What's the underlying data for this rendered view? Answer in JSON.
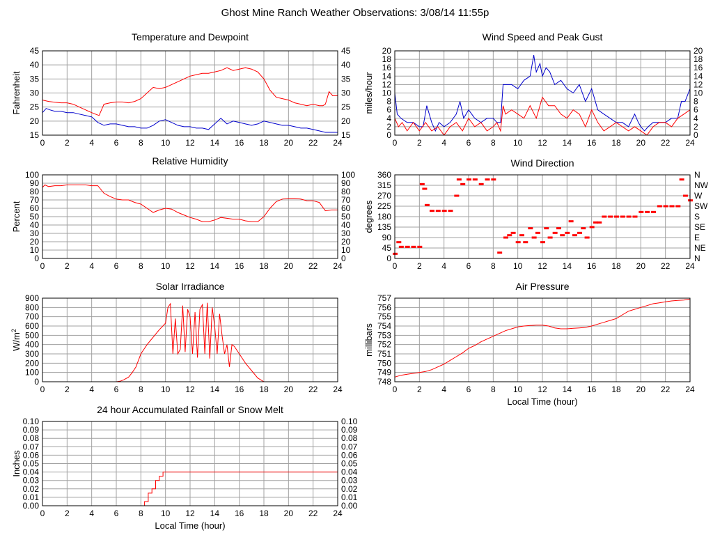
{
  "page": {
    "title": "Ghost Mine Ranch Weather Observations: 3/08/14 11:55p"
  },
  "colors": {
    "red": "#ff0000",
    "blue": "#0000cc",
    "grid": "#a0a0a0",
    "frame": "#000000"
  },
  "chart_data": [
    {
      "id": "temperature",
      "type": "line",
      "title": "Temperature and Dewpoint",
      "ylabel": "Fahrenheit",
      "xlabel": "",
      "xlim": [
        0,
        24
      ],
      "ylim": [
        15,
        45
      ],
      "yticks": [
        15,
        20,
        25,
        30,
        35,
        40,
        45
      ],
      "right_axis": true,
      "series": [
        {
          "color": "red",
          "x": [
            0,
            0.5,
            1,
            1.5,
            2,
            2.5,
            3,
            3.5,
            4,
            4.3,
            4.6,
            5,
            5.5,
            6,
            6.5,
            7,
            7.5,
            8,
            8.5,
            9,
            9.5,
            10,
            10.5,
            11,
            11.5,
            12,
            12.5,
            13,
            13.5,
            14,
            14.5,
            15,
            15.5,
            16,
            16.5,
            17,
            17.5,
            18,
            18.5,
            19,
            19.5,
            20,
            20.5,
            21,
            21.5,
            22,
            22.5,
            22.8,
            23,
            23.3,
            23.6,
            24
          ],
          "y": [
            27.5,
            27,
            26.7,
            26.5,
            26.5,
            26,
            25,
            24,
            23,
            22.5,
            22,
            26,
            26.5,
            26.8,
            26.8,
            26.5,
            27,
            28,
            30,
            32,
            31.5,
            32,
            33,
            34,
            35,
            36,
            36.5,
            37,
            37,
            37.5,
            38,
            39,
            38,
            38.5,
            39,
            38.5,
            37.5,
            35,
            31,
            28.5,
            28,
            27.5,
            26.5,
            26,
            25.5,
            26,
            25.5,
            25.5,
            26,
            30.5,
            29,
            29
          ]
        },
        {
          "color": "blue",
          "x": [
            0,
            0.3,
            0.6,
            1,
            1.5,
            2,
            2.5,
            3,
            3.5,
            4,
            4.5,
            5,
            5.5,
            6,
            6.5,
            7,
            7.5,
            8,
            8.5,
            9,
            9.5,
            10,
            10.5,
            11,
            11.5,
            12,
            12.5,
            13,
            13.5,
            14,
            14.5,
            15,
            15.5,
            16,
            16.5,
            17,
            17.5,
            18,
            18.5,
            19,
            19.5,
            20,
            20.5,
            21,
            21.5,
            22,
            22.5,
            23,
            23.5,
            24
          ],
          "y": [
            23,
            24.5,
            24,
            23.5,
            23.5,
            23,
            23,
            22.5,
            22,
            21.5,
            19.5,
            18.5,
            19,
            19,
            18.5,
            18,
            18,
            17.5,
            17.5,
            18.5,
            20,
            20.5,
            19.5,
            18.5,
            18,
            18,
            17.5,
            17.5,
            17,
            19,
            21,
            19,
            20,
            19.5,
            19,
            18.5,
            19,
            20,
            19.5,
            19,
            18.5,
            18.5,
            18,
            17.5,
            17.5,
            17,
            16.5,
            16,
            16,
            16
          ]
        }
      ]
    },
    {
      "id": "wind_speed",
      "type": "line",
      "title": "Wind Speed and Peak Gust",
      "ylabel": "miles/hour",
      "xlabel": "",
      "xlim": [
        0,
        24
      ],
      "ylim": [
        0,
        20
      ],
      "yticks": [
        0,
        2,
        4,
        6,
        8,
        10,
        12,
        14,
        16,
        18,
        20
      ],
      "right_axis": true,
      "series": [
        {
          "color": "blue",
          "x": [
            0,
            0.2,
            0.5,
            1,
            1.5,
            2,
            2.3,
            2.6,
            3,
            3.3,
            3.6,
            4,
            4.5,
            5,
            5.3,
            5.6,
            6,
            6.5,
            7,
            7.5,
            8,
            8.3,
            8.6,
            8.8,
            9,
            9.5,
            10,
            10.5,
            11,
            11.3,
            11.5,
            11.8,
            12,
            12.3,
            12.6,
            13,
            13.5,
            14,
            14.5,
            15,
            15.5,
            16,
            16.5,
            17,
            17.5,
            18,
            18.5,
            19,
            19.5,
            19.8,
            20,
            20.3,
            20.6,
            21,
            21.5,
            22,
            22.5,
            23,
            23.3,
            23.6,
            24
          ],
          "y": [
            10,
            5,
            4,
            3,
            3,
            2,
            2,
            7,
            3,
            1,
            3,
            2,
            3,
            5,
            8,
            4,
            6,
            4,
            3,
            4,
            4,
            3,
            3,
            12,
            12,
            12,
            11,
            13,
            14,
            19,
            15,
            17,
            14,
            16,
            15,
            12,
            13,
            11,
            10,
            12,
            8,
            11,
            6,
            5,
            4,
            3,
            3,
            2,
            5,
            3,
            2,
            1,
            2,
            3,
            3,
            3,
            4,
            4,
            8,
            8,
            11
          ]
        },
        {
          "color": "red",
          "x": [
            0,
            0.3,
            0.6,
            1,
            1.5,
            2,
            2.5,
            3,
            3.5,
            4,
            4.5,
            5,
            5.5,
            6,
            6.5,
            7,
            7.5,
            8,
            8.3,
            8.6,
            8.8,
            9,
            9.5,
            10,
            10.5,
            11,
            11.5,
            12,
            12.5,
            13,
            13.5,
            14,
            14.5,
            15,
            15.5,
            16,
            16.5,
            17,
            17.5,
            18,
            18.5,
            19,
            19.5,
            20,
            20.5,
            21,
            21.5,
            22,
            22.5,
            23,
            23.5,
            24
          ],
          "y": [
            4,
            2,
            3,
            1,
            3,
            1,
            3,
            1,
            2,
            0,
            2,
            3,
            1,
            4,
            2,
            3,
            1,
            2,
            3,
            1,
            7,
            5,
            6,
            5,
            4,
            7,
            4,
            9,
            7,
            7,
            5,
            4,
            6,
            5,
            2,
            6,
            3,
            1,
            2,
            3,
            2,
            1,
            2,
            1,
            0,
            2,
            3,
            3,
            2,
            4,
            5,
            6
          ]
        }
      ]
    },
    {
      "id": "humidity",
      "type": "line",
      "title": "Relative Humidity",
      "ylabel": "Percent",
      "xlabel": "",
      "xlim": [
        0,
        24
      ],
      "ylim": [
        0,
        100
      ],
      "yticks": [
        0,
        10,
        20,
        30,
        40,
        50,
        60,
        70,
        80,
        90,
        100
      ],
      "right_axis": true,
      "series": [
        {
          "color": "red",
          "x": [
            0,
            0.2,
            0.5,
            1,
            1.5,
            2,
            2.5,
            3,
            3.5,
            4,
            4.5,
            5,
            5.5,
            6,
            6.5,
            7,
            7.5,
            8,
            8.5,
            9,
            9.5,
            10,
            10.5,
            11,
            11.5,
            12,
            12.5,
            13,
            13.5,
            14,
            14.5,
            15,
            15.5,
            16,
            16.5,
            17,
            17.5,
            18,
            18.5,
            19,
            19.5,
            20,
            20.5,
            21,
            21.5,
            22,
            22.5,
            22.8,
            23,
            23.5,
            24
          ],
          "y": [
            85,
            88,
            86,
            87,
            87,
            88,
            88,
            88,
            88,
            87,
            87,
            78,
            74,
            71,
            70,
            70,
            67,
            65,
            60,
            55,
            58,
            60,
            59,
            55,
            52,
            49,
            47,
            44,
            44,
            46,
            49,
            48,
            47,
            47,
            45,
            44,
            44,
            50,
            60,
            68,
            71,
            72,
            72,
            71,
            69,
            69,
            67,
            61,
            57,
            58,
            58
          ]
        }
      ]
    },
    {
      "id": "wind_direction",
      "type": "scatter",
      "title": "Wind Direction",
      "ylabel": "degrees",
      "xlabel": "",
      "xlim": [
        0,
        24
      ],
      "ylim": [
        0,
        360
      ],
      "yticks": [
        0,
        45,
        90,
        135,
        180,
        225,
        270,
        315,
        360
      ],
      "right_labels": [
        "N",
        "NE",
        "E",
        "SE",
        "S",
        "SW",
        "W",
        "NW",
        "N"
      ],
      "series": [
        {
          "color": "red",
          "x": [
            0,
            0.3,
            0.5,
            1,
            1.5,
            2,
            2.2,
            2.4,
            2.6,
            3,
            3.5,
            4,
            4.5,
            5,
            5.2,
            5.5,
            6,
            6.5,
            7,
            7.5,
            8,
            8.5,
            9,
            9.3,
            9.6,
            10,
            10.3,
            10.6,
            11,
            11.3,
            11.6,
            12,
            12.3,
            12.6,
            13,
            13.3,
            13.6,
            14,
            14.3,
            14.6,
            15,
            15.3,
            15.6,
            16,
            16.3,
            16.6,
            17,
            17.5,
            18,
            18.5,
            19,
            19.5,
            20,
            20.5,
            21,
            21.5,
            22,
            22.5,
            23,
            23.3,
            23.6,
            24
          ],
          "y": [
            20,
            70,
            50,
            50,
            50,
            50,
            320,
            300,
            230,
            205,
            205,
            205,
            205,
            270,
            340,
            320,
            340,
            340,
            320,
            340,
            340,
            25,
            90,
            100,
            110,
            70,
            100,
            70,
            130,
            90,
            110,
            70,
            130,
            90,
            110,
            130,
            100,
            110,
            160,
            100,
            110,
            130,
            90,
            135,
            155,
            155,
            180,
            180,
            180,
            180,
            180,
            180,
            200,
            200,
            200,
            225,
            225,
            225,
            225,
            340,
            270,
            250
          ]
        }
      ]
    },
    {
      "id": "solar",
      "type": "line",
      "title": "Solar Irradiance",
      "ylabel": "W/m",
      "ylabel_sup": "2",
      "xlabel": "",
      "xlim": [
        0,
        24
      ],
      "ylim": [
        0,
        900
      ],
      "yticks": [
        0,
        100,
        200,
        300,
        400,
        500,
        600,
        700,
        800,
        900
      ],
      "right_axis": false,
      "series": [
        {
          "color": "red",
          "x": [
            0,
            6,
            6.3,
            6.6,
            7,
            7.3,
            7.6,
            8,
            8.5,
            9,
            9.5,
            10,
            10.2,
            10.4,
            10.6,
            10.8,
            11,
            11.2,
            11.4,
            11.6,
            11.8,
            12,
            12.2,
            12.4,
            12.6,
            12.8,
            13,
            13.2,
            13.4,
            13.6,
            13.8,
            14,
            14.2,
            14.4,
            14.6,
            14.8,
            15,
            15.2,
            15.4,
            15.6,
            16,
            16.5,
            17,
            17.5,
            18,
            18.5,
            24
          ],
          "y": [
            0,
            0,
            5,
            20,
            50,
            100,
            160,
            300,
            400,
            480,
            560,
            630,
            800,
            840,
            300,
            680,
            300,
            350,
            820,
            320,
            780,
            700,
            300,
            750,
            260,
            780,
            830,
            300,
            850,
            250,
            800,
            600,
            300,
            730,
            500,
            300,
            400,
            160,
            400,
            380,
            300,
            200,
            120,
            40,
            0,
            0,
            0
          ]
        }
      ]
    },
    {
      "id": "pressure",
      "type": "line",
      "title": "Air Pressure",
      "ylabel": "millibars",
      "xlabel": "Local Time (hour)",
      "xlim": [
        0,
        24
      ],
      "ylim": [
        748,
        757
      ],
      "yticks": [
        748,
        749,
        750,
        751,
        752,
        753,
        754,
        755,
        756,
        757
      ],
      "right_axis": false,
      "series": [
        {
          "color": "red",
          "x": [
            0,
            0.5,
            1,
            1.5,
            2,
            2.5,
            3,
            3.5,
            4,
            4.5,
            5,
            5.5,
            6,
            6.5,
            7,
            7.5,
            8,
            8.5,
            9,
            9.5,
            10,
            10.5,
            11,
            11.5,
            12,
            12.5,
            13,
            13.5,
            14,
            14.5,
            15,
            15.5,
            16,
            16.5,
            17,
            17.5,
            18,
            18.5,
            19,
            19.5,
            20,
            20.5,
            21,
            21.5,
            22,
            22.5,
            23,
            23.5,
            24
          ],
          "y": [
            748.5,
            748.7,
            748.8,
            748.9,
            749,
            749.1,
            749.3,
            749.6,
            749.9,
            750.3,
            750.7,
            751.1,
            751.6,
            751.9,
            752.3,
            752.6,
            752.9,
            753.2,
            753.5,
            753.7,
            753.9,
            754,
            754.05,
            754.1,
            754.1,
            754,
            753.8,
            753.7,
            753.7,
            753.75,
            753.8,
            753.85,
            754,
            754.2,
            754.4,
            754.6,
            754.8,
            755.2,
            755.6,
            755.8,
            756,
            756.2,
            756.4,
            756.5,
            756.6,
            756.7,
            756.75,
            756.8,
            756.9
          ]
        }
      ]
    },
    {
      "id": "rain",
      "type": "line",
      "title": "24 hour Accumulated Rainfall or Snow Melt",
      "ylabel": "Inches",
      "xlabel": "Local Time (hour)",
      "xlim": [
        0,
        24
      ],
      "ylim": [
        0,
        0.1
      ],
      "yticks": [
        "0.00",
        "0.01",
        "0.02",
        "0.03",
        "0.04",
        "0.05",
        "0.06",
        "0.07",
        "0.08",
        "0.09",
        "0.10"
      ],
      "right_axis": true,
      "series": [
        {
          "color": "red",
          "x": [
            0,
            8.3,
            8.3,
            8.6,
            8.6,
            8.9,
            8.9,
            9.2,
            9.2,
            9.5,
            9.5,
            9.8,
            9.8,
            24
          ],
          "y": [
            0,
            0,
            0.005,
            0.005,
            0.015,
            0.015,
            0.02,
            0.02,
            0.03,
            0.03,
            0.035,
            0.035,
            0.04,
            0.04
          ]
        }
      ]
    }
  ],
  "xticks": [
    0,
    2,
    4,
    6,
    8,
    10,
    12,
    14,
    16,
    18,
    20,
    22,
    24
  ]
}
